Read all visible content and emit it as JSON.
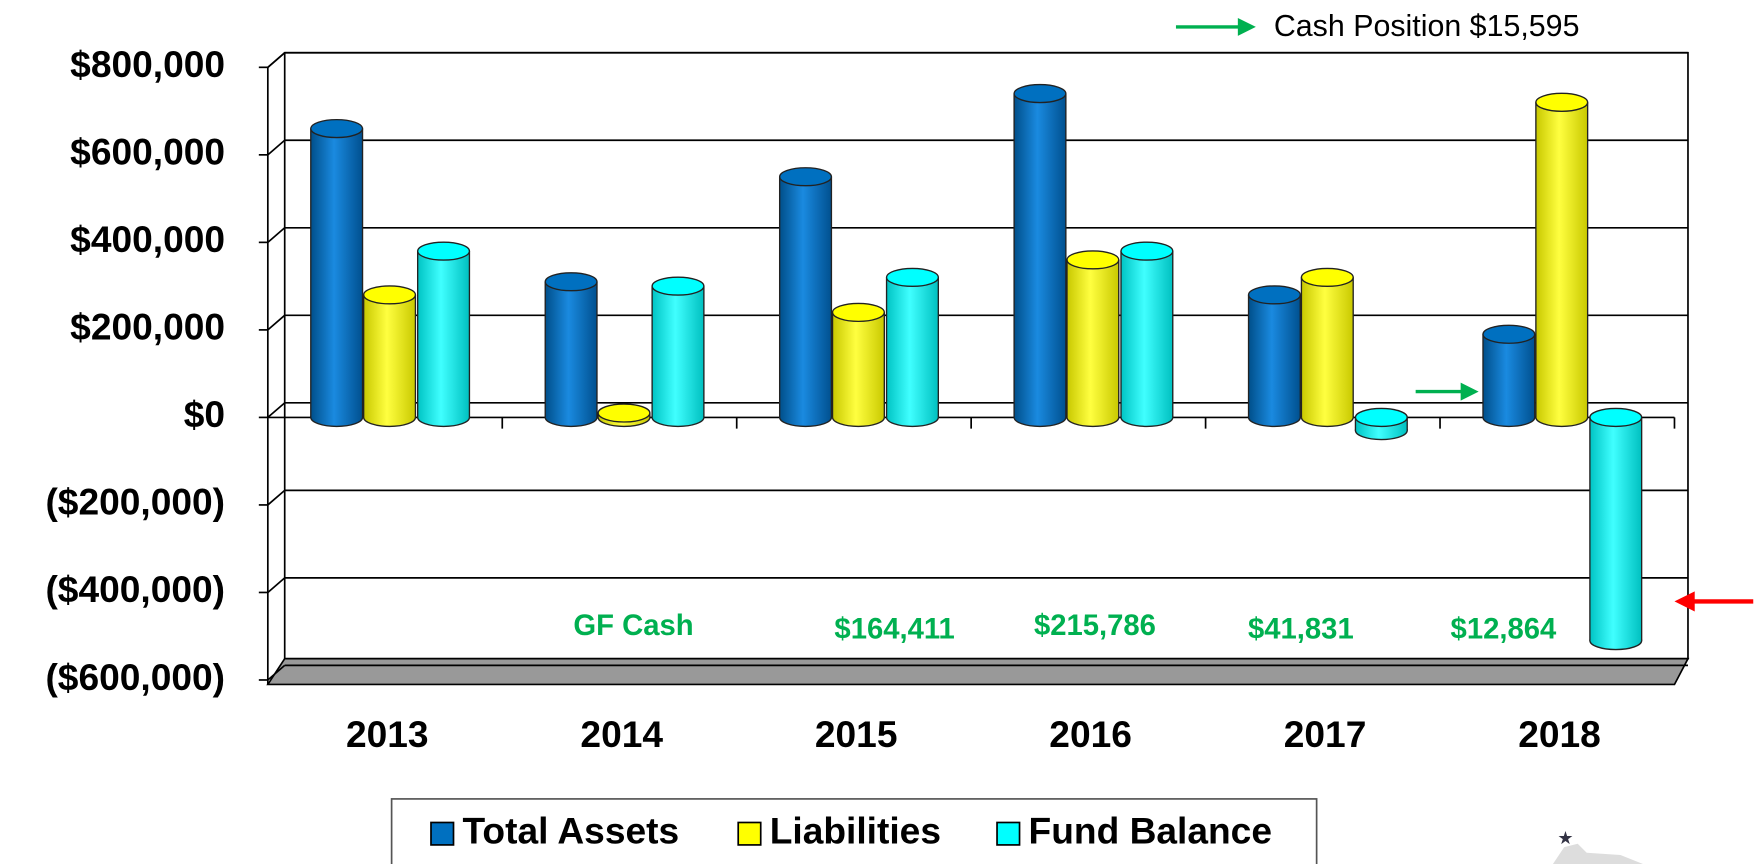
{
  "chart_data": {
    "type": "bar3d",
    "categories": [
      "2013",
      "2014",
      "2015",
      "2016",
      "2017",
      "2018"
    ],
    "series": [
      {
        "name": "Total Assets",
        "color": "#0070c0",
        "values": [
          660000,
          310000,
          550000,
          740000,
          280000,
          190000
        ]
      },
      {
        "name": "Liabilities",
        "color": "#ffff00",
        "values": [
          280000,
          10000,
          240000,
          360000,
          320000,
          720000
        ]
      },
      {
        "name": "Fund Balance",
        "color": "#00ffff",
        "values": [
          380000,
          300000,
          320000,
          380000,
          -30000,
          -510000
        ]
      }
    ],
    "ylim": [
      -600000,
      800000
    ],
    "yticks": [
      {
        "value": -600000,
        "label": "($600,000)"
      },
      {
        "value": -400000,
        "label": "($400,000)"
      },
      {
        "value": -200000,
        "label": "($200,000)"
      },
      {
        "value": 0,
        "label": "$0"
      },
      {
        "value": 200000,
        "label": "$200,000"
      },
      {
        "value": 400000,
        "label": "$400,000"
      },
      {
        "value": 600000,
        "label": "$600,000"
      },
      {
        "value": 800000,
        "label": "$800,000"
      }
    ],
    "grid": true,
    "annotations": [
      "Cash Position $15,595",
      "GF Cash",
      "$164,411",
      "$215,786",
      "$41,831",
      "$12,864"
    ]
  }
}
